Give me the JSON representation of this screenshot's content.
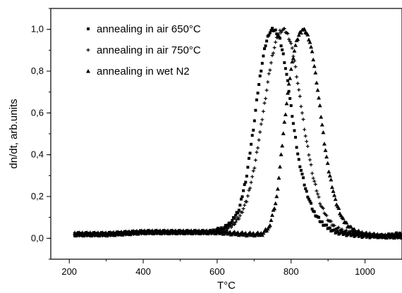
{
  "chart_data": {
    "type": "scatter",
    "xlabel": "T°C",
    "ylabel": "dn/dt, arb.units",
    "xlim": [
      150,
      1100
    ],
    "ylim": [
      -0.1,
      1.1
    ],
    "xticks": [
      200,
      400,
      600,
      800,
      1000
    ],
    "xtick_labels": [
      "200",
      "400",
      "600",
      "800",
      "1000"
    ],
    "yticks": [
      0.0,
      0.2,
      0.4,
      0.6,
      0.8,
      1.0
    ],
    "ytick_labels": [
      "0,0",
      "0,2",
      "0,4",
      "0,6",
      "0,8",
      "1,0"
    ],
    "grid": false,
    "legend_position": "top-left",
    "series": [
      {
        "name": "annealing in air 650°C",
        "marker": "square",
        "color": "#000000",
        "x": [
          215,
          300,
          400,
          500,
          580,
          600,
          620,
          640,
          660,
          680,
          700,
          710,
          720,
          730,
          740,
          750,
          760,
          770,
          780,
          790,
          800,
          810,
          820,
          840,
          860,
          880,
          900,
          920,
          950,
          1000,
          1050,
          1090,
          1100
        ],
        "y": [
          0.02,
          0.02,
          0.03,
          0.03,
          0.03,
          0.04,
          0.05,
          0.08,
          0.14,
          0.3,
          0.55,
          0.7,
          0.82,
          0.92,
          0.98,
          1.0,
          0.99,
          0.95,
          0.87,
          0.76,
          0.63,
          0.5,
          0.38,
          0.23,
          0.13,
          0.08,
          0.05,
          0.03,
          0.02,
          0.01,
          0.01,
          0.02,
          0.02
        ]
      },
      {
        "name": "annealing in air 750°C",
        "marker": "plus",
        "color": "#000000",
        "x": [
          215,
          300,
          400,
          500,
          580,
          600,
          620,
          640,
          660,
          680,
          700,
          720,
          740,
          750,
          760,
          770,
          780,
          790,
          800,
          810,
          820,
          830,
          840,
          860,
          880,
          900,
          920,
          950,
          1000,
          1050,
          1100
        ],
        "y": [
          0.02,
          0.02,
          0.03,
          0.03,
          0.03,
          0.03,
          0.04,
          0.06,
          0.1,
          0.18,
          0.33,
          0.55,
          0.78,
          0.88,
          0.95,
          0.99,
          1.0,
          0.98,
          0.93,
          0.84,
          0.72,
          0.6,
          0.48,
          0.29,
          0.16,
          0.09,
          0.05,
          0.03,
          0.02,
          0.01,
          0.01
        ]
      },
      {
        "name": "annealing in wet N2",
        "marker": "triangle",
        "color": "#000000",
        "x": [
          215,
          300,
          400,
          500,
          600,
          680,
          720,
          740,
          760,
          770,
          780,
          790,
          800,
          810,
          820,
          830,
          840,
          850,
          860,
          870,
          880,
          890,
          900,
          920,
          940,
          960,
          980,
          1000,
          1050,
          1100
        ],
        "y": [
          0.02,
          0.02,
          0.03,
          0.03,
          0.03,
          0.02,
          0.02,
          0.05,
          0.18,
          0.34,
          0.52,
          0.68,
          0.81,
          0.91,
          0.97,
          1.0,
          0.99,
          0.95,
          0.86,
          0.74,
          0.6,
          0.46,
          0.34,
          0.18,
          0.09,
          0.05,
          0.03,
          0.02,
          0.01,
          0.01
        ]
      }
    ]
  }
}
